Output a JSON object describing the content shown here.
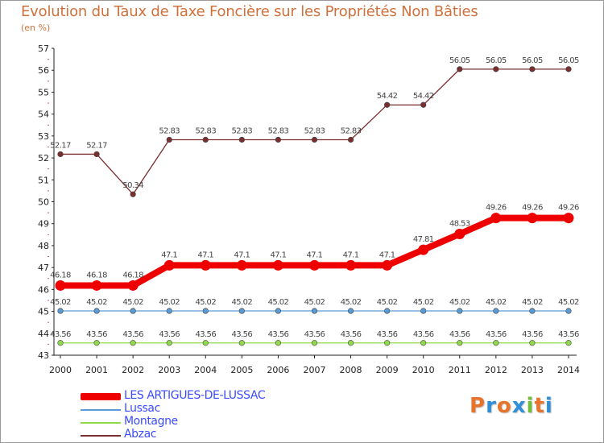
{
  "title": "Evolution du Taux de Taxe Foncière sur les Propriétés Non Bâties",
  "unit": "(en %)",
  "logo": {
    "text": "Proxiti",
    "letters": [
      {
        "ch": "P",
        "color": "#e8742c"
      },
      {
        "ch": "r",
        "color": "#2f8fd8"
      },
      {
        "ch": "o",
        "color": "#e8742c"
      },
      {
        "ch": "x",
        "color": "#2f8fd8"
      },
      {
        "ch": "i",
        "color": "#6fbf3a"
      },
      {
        "ch": "t",
        "color": "#e8742c"
      },
      {
        "ch": "i",
        "color": "#2f8fd8"
      }
    ]
  },
  "chart_data": {
    "type": "line",
    "title": "Evolution du Taux de Taxe Foncière sur les Propriétés Non Bâties",
    "ylabel": "(en %)",
    "xlabel": "",
    "x": [
      "2000",
      "2001",
      "2002",
      "2003",
      "2004",
      "2005",
      "2006",
      "2007",
      "2008",
      "2009",
      "2010",
      "2011",
      "2012",
      "2013",
      "2014"
    ],
    "ylim": [
      43,
      57
    ],
    "yticks": [
      "43",
      "44",
      "45",
      "46",
      "47",
      "48",
      "49",
      "50",
      "51",
      "52",
      "53",
      "54",
      "55",
      "56",
      "57"
    ],
    "grid": false,
    "legend_position": "bottom-left",
    "series": [
      {
        "name": "LES ARTIGUES-DE-LUSSAC",
        "color": "#ee0000",
        "emphasis": true,
        "values": [
          46.18,
          46.18,
          46.18,
          47.1,
          47.1,
          47.1,
          47.1,
          47.1,
          47.1,
          47.1,
          47.81,
          48.53,
          49.26,
          49.26,
          49.26
        ],
        "labels": [
          "46.18",
          "46.18",
          "46.18",
          "47.1",
          "47.1",
          "47.1",
          "47.1",
          "47.1",
          "47.1",
          "47.1",
          "47.81",
          "48.53",
          "49.26",
          "49.26",
          "49.26"
        ]
      },
      {
        "name": "Lussac",
        "color": "#5b9bd5",
        "values": [
          45.02,
          45.02,
          45.02,
          45.02,
          45.02,
          45.02,
          45.02,
          45.02,
          45.02,
          45.02,
          45.02,
          45.02,
          45.02,
          45.02,
          45.02
        ],
        "labels": [
          "45.02",
          "45.02",
          "45.02",
          "45.02",
          "45.02",
          "45.02",
          "45.02",
          "45.02",
          "45.02",
          "45.02",
          "45.02",
          "45.02",
          "45.02",
          "45.02",
          "45.02"
        ]
      },
      {
        "name": "Montagne",
        "color": "#8fd94a",
        "values": [
          43.56,
          43.56,
          43.56,
          43.56,
          43.56,
          43.56,
          43.56,
          43.56,
          43.56,
          43.56,
          43.56,
          43.56,
          43.56,
          43.56,
          43.56
        ],
        "labels": [
          "43.56",
          "43.56",
          "43.56",
          "43.56",
          "43.56",
          "43.56",
          "43.56",
          "43.56",
          "43.56",
          "43.56",
          "43.56",
          "43.56",
          "43.56",
          "43.56",
          "43.56"
        ]
      },
      {
        "name": "Abzac",
        "color": "#7a2e2e",
        "values": [
          52.17,
          52.17,
          50.34,
          52.83,
          52.83,
          52.83,
          52.83,
          52.83,
          52.83,
          54.42,
          54.42,
          56.05,
          56.05,
          56.05,
          56.05
        ],
        "labels": [
          "52.17",
          "52.17",
          "50.34",
          "52.83",
          "52.83",
          "52.83",
          "52.83",
          "52.83",
          "52.83",
          "54.42",
          "54.42",
          "56.05",
          "56.05",
          "56.05",
          "56.05"
        ]
      }
    ]
  }
}
